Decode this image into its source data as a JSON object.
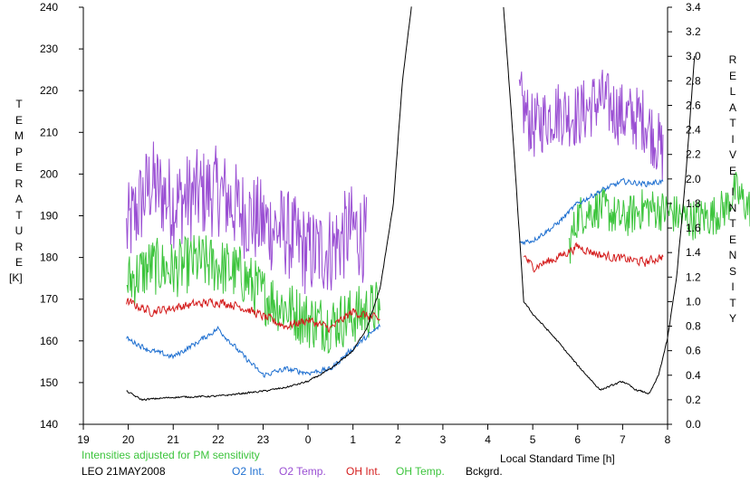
{
  "chart_data": {
    "type": "line",
    "left_axis": {
      "label_letters": [
        "T",
        "E",
        "M",
        "P",
        "E",
        "R",
        "A",
        "T",
        "U",
        "R",
        "E"
      ],
      "unit": "[K]",
      "ylim": [
        140,
        240
      ],
      "ticks": [
        140,
        150,
        160,
        170,
        180,
        190,
        200,
        210,
        220,
        230,
        240
      ]
    },
    "right_axis": {
      "label_words": [
        [
          "R",
          "E",
          "L",
          "A",
          "T",
          "I",
          "V",
          "E"
        ],
        [
          "I",
          "N",
          "T",
          "E",
          "N",
          "S",
          "I",
          "T",
          "Y"
        ]
      ],
      "ylim": [
        0.0,
        3.4
      ],
      "ticks": [
        "0.0",
        "0.2",
        "0.4",
        "0.6",
        "0.8",
        "1.0",
        "1.2",
        "1.4",
        "1.6",
        "1.8",
        "2.0",
        "2.2",
        "2.4",
        "2.6",
        "2.8",
        "3.0",
        "3.2",
        "3.4"
      ]
    },
    "x_axis": {
      "label": "Local Standard Time [h]",
      "range": [
        19,
        32
      ],
      "tick_labels": [
        "19",
        "20",
        "21",
        "22",
        "23",
        "0",
        "1",
        "2",
        "3",
        "4",
        "5",
        "6",
        "7",
        "8"
      ]
    },
    "note": "Intensities adjusted for PM sensitivity",
    "station": "LEO 21MAY2008",
    "legend": [
      {
        "label": "O2 Int.",
        "color": "#1e6fd0"
      },
      {
        "label": "O2 Temp.",
        "color": "#9a4fd3"
      },
      {
        "label": "OH Int.",
        "color": "#d41d1d"
      },
      {
        "label": "OH Temp.",
        "color": "#3cc43c"
      },
      {
        "label": "Bckgrd.",
        "color": "#000000"
      }
    ],
    "series": [
      {
        "name": "O2 Temp.",
        "axis": "left",
        "color": "#9a4fd3",
        "segments": [
          {
            "x": [
              19.96,
              20.5,
              21.0,
              21.5,
              22.0,
              22.5,
              23.0,
              23.5,
              24.0,
              24.5,
              25.0,
              25.3
            ],
            "y": [
              186,
              198,
              193,
              195,
              196,
              191,
              188,
              186,
              181,
              182,
              187,
              184
            ],
            "amp": 11
          },
          {
            "x": [
              28.7,
              29.0,
              29.5,
              30.0,
              30.5,
              31.0,
              31.5,
              31.9
            ],
            "y": [
              218,
              211,
              215,
              214,
              218,
              214,
              213,
              205
            ],
            "amp": 8
          }
        ]
      },
      {
        "name": "OH Temp.",
        "axis": "left",
        "color": "#3cc43c",
        "segments": [
          {
            "x": [
              19.96,
              20.5,
              21.0,
              21.5,
              22.0,
              22.5,
              23.0,
              23.5,
              24.0,
              24.5,
              25.0,
              25.6
            ],
            "y": [
              174,
              178,
              177,
              179,
              178,
              176,
              171,
              168,
              165,
              164,
              166,
              168
            ],
            "amp": 7
          },
          {
            "x": [
              29.8,
              30.0,
              30.5,
              31.0,
              31.5,
              32.0,
              32.5,
              33.0,
              33.3,
              33.5,
              33.8,
              34.2
            ],
            "y": [
              182,
              190,
              192,
              189,
              192,
              191,
              189,
              190,
              192,
              196,
              192,
              191
            ],
            "amp": 5
          }
        ]
      },
      {
        "name": "OH Int.",
        "axis": "right",
        "color": "#d41d1d",
        "segments": [
          {
            "x": [
              19.96,
              20.5,
              21.0,
              21.5,
              22.0,
              22.5,
              23.0,
              23.5,
              24.0,
              24.5,
              25.0,
              25.6
            ],
            "y": [
              1.0,
              0.92,
              0.95,
              0.98,
              1.0,
              0.96,
              0.88,
              0.8,
              0.85,
              0.78,
              0.92,
              0.85
            ],
            "amp": 0.05
          },
          {
            "x": [
              28.8,
              29.0,
              29.5,
              30.0,
              30.5,
              31.0,
              31.5,
              31.9
            ],
            "y": [
              1.38,
              1.28,
              1.35,
              1.45,
              1.38,
              1.35,
              1.32,
              1.37
            ],
            "amp": 0.05
          }
        ]
      },
      {
        "name": "O2 Int.",
        "axis": "right",
        "color": "#1e6fd0",
        "segments": [
          {
            "x": [
              19.96,
              20.5,
              21.0,
              21.5,
              22.0,
              22.5,
              23.0,
              23.5,
              24.0,
              24.5,
              25.0,
              25.6
            ],
            "y": [
              0.7,
              0.6,
              0.55,
              0.66,
              0.78,
              0.58,
              0.4,
              0.45,
              0.42,
              0.45,
              0.62,
              0.8
            ],
            "amp": 0.03
          },
          {
            "x": [
              28.7,
              29.0,
              29.5,
              30.0,
              30.5,
              31.0,
              31.5,
              31.9
            ],
            "y": [
              1.48,
              1.5,
              1.62,
              1.8,
              1.9,
              1.98,
              1.96,
              1.98
            ],
            "amp": 0.03
          }
        ]
      },
      {
        "name": "Bckgrd.",
        "axis": "right",
        "color": "#000000",
        "segments": [
          {
            "x": [
              19.96,
              20.3,
              21.0,
              22.0,
              23.0,
              23.5,
              24.0,
              24.5,
              25.0,
              25.3,
              25.6,
              25.9,
              26.1,
              26.3
            ],
            "y": [
              0.27,
              0.2,
              0.22,
              0.23,
              0.27,
              0.3,
              0.35,
              0.45,
              0.6,
              0.78,
              1.1,
              1.8,
              2.8,
              3.4
            ],
            "amp": 0.01
          },
          {
            "x": [
              28.35,
              28.55,
              28.8,
              29.0,
              29.5,
              30.0,
              30.5,
              31.0,
              31.3,
              31.6,
              31.8,
              32.0,
              32.2,
              32.4,
              32.6
            ],
            "y": [
              3.4,
              2.4,
              1.0,
              0.9,
              0.7,
              0.48,
              0.28,
              0.35,
              0.28,
              0.25,
              0.4,
              0.7,
              1.2,
              2.0,
              3.0
            ],
            "amp": 0.01
          }
        ]
      }
    ]
  }
}
